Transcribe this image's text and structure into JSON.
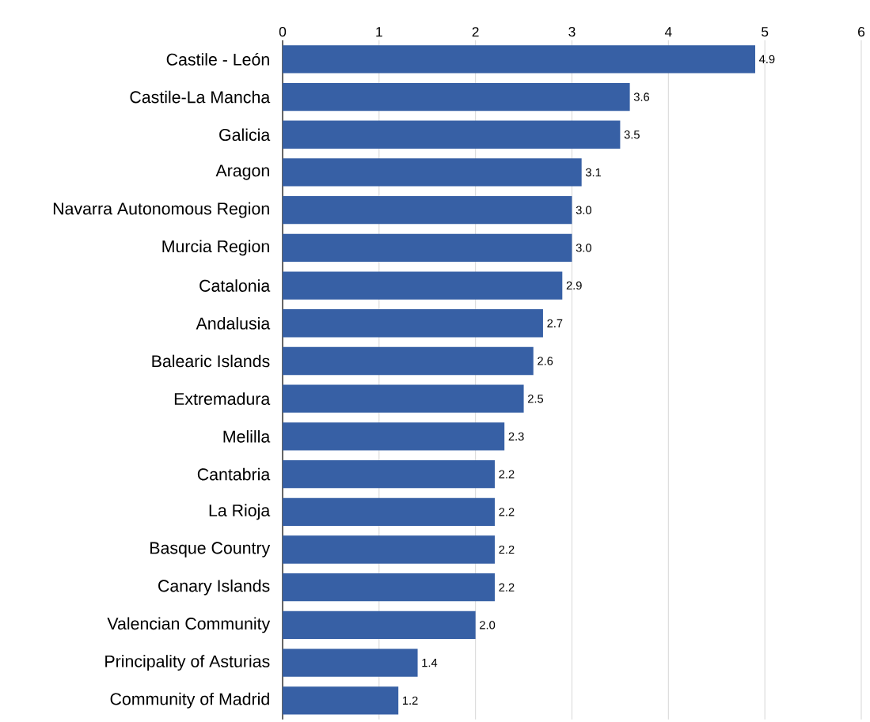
{
  "chart_data": {
    "type": "bar",
    "orientation": "horizontal",
    "categories": [
      "Castile - León",
      "Castile-La Mancha",
      "Galicia",
      "Aragon",
      "Navarra Autonomous Region",
      "Murcia Region",
      "Catalonia",
      "Andalusia",
      "Balearic Islands",
      "Extremadura",
      "Melilla",
      "Cantabria",
      "La Rioja",
      "Basque Country",
      "Canary Islands",
      "Valencian Community",
      "Principality of Asturias",
      "Community of Madrid"
    ],
    "values": [
      4.9,
      3.6,
      3.5,
      3.1,
      3.0,
      3.0,
      2.9,
      2.7,
      2.6,
      2.5,
      2.3,
      2.2,
      2.2,
      2.2,
      2.2,
      2.0,
      1.4,
      1.2
    ],
    "value_labels": [
      "4.9",
      "3.6",
      "3.5",
      "3.1",
      "3.0",
      "3.0",
      "2.9",
      "2.7",
      "2.6",
      "2.5",
      "2.3",
      "2.2",
      "2.2",
      "2.2",
      "2.2",
      "2.0",
      "1.4",
      "1.2"
    ],
    "color": "#3760a5",
    "xlim": [
      0,
      6
    ],
    "xticks": [
      0,
      1,
      2,
      3,
      4,
      5,
      6
    ],
    "grid": "x"
  }
}
